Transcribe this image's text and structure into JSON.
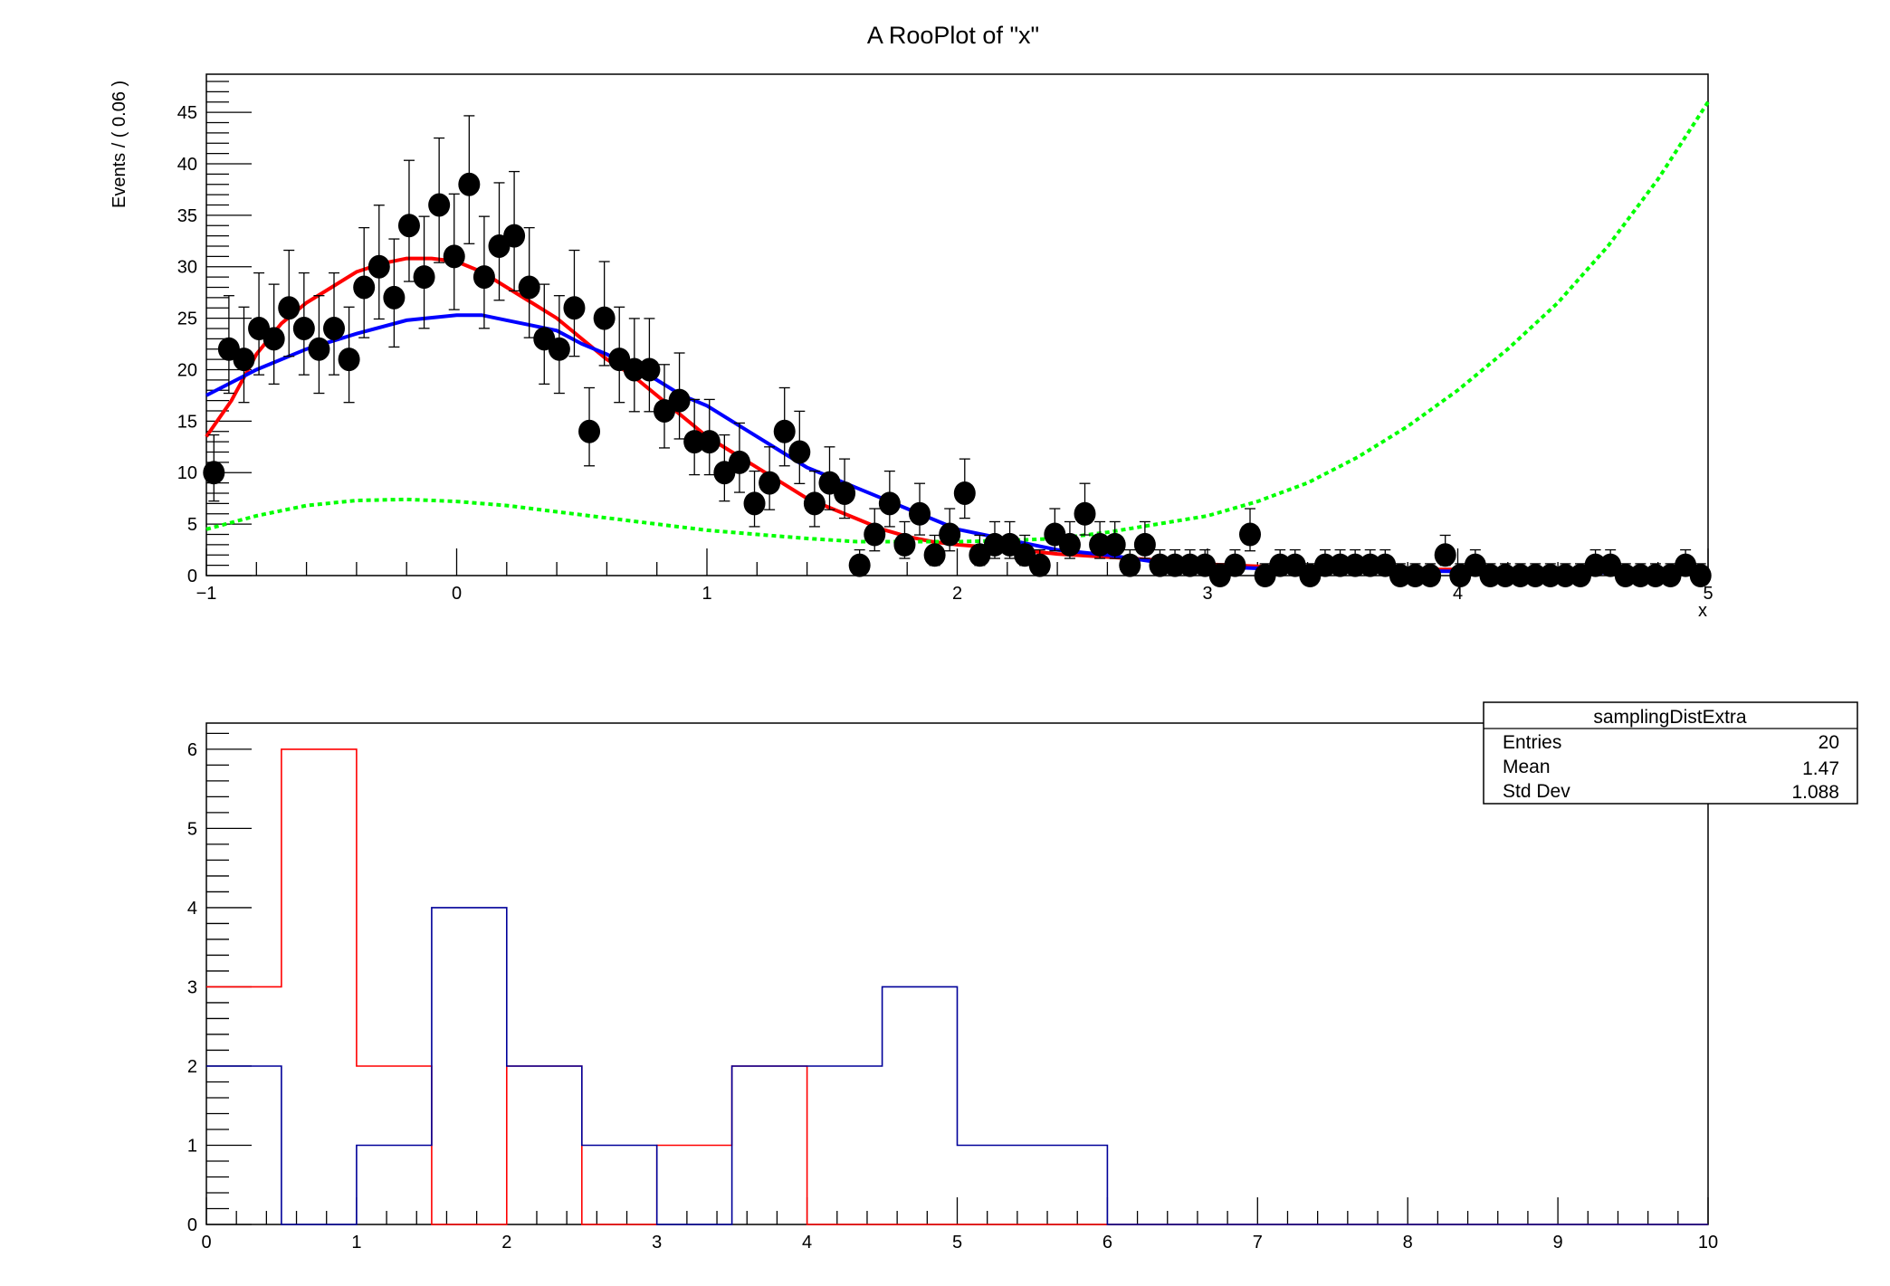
{
  "chart_data": [
    {
      "type": "scatter",
      "title": "A RooPlot of \"x\"",
      "xlabel": "x",
      "ylabel": "Events / ( 0.06 )",
      "xlim": [
        -1,
        5
      ],
      "ylim": [
        0,
        48.7
      ],
      "x_ticks": [
        -1,
        0,
        1,
        2,
        3,
        4,
        5
      ],
      "x_tick_labels": [
        "−1",
        "0",
        "1",
        "2",
        "3",
        "4",
        "5"
      ],
      "y_ticks": [
        0,
        5,
        10,
        15,
        20,
        25,
        30,
        35,
        40,
        45
      ],
      "y_tick_labels": [
        "0",
        "5",
        "10",
        "15",
        "20",
        "25",
        "30",
        "35",
        "40",
        "45"
      ],
      "grid": false,
      "bin_width": 0.06,
      "data_points": [
        10,
        22,
        21,
        24,
        23,
        26,
        24,
        22,
        24,
        21,
        28,
        30,
        27,
        34,
        29,
        36,
        31,
        38,
        29,
        32,
        33,
        28,
        23,
        22,
        26,
        14,
        25,
        21,
        20,
        20,
        16,
        17,
        13,
        13,
        10,
        11,
        7,
        9,
        14,
        12,
        7,
        9,
        8,
        1,
        4,
        7,
        3,
        6,
        2,
        4,
        8,
        2,
        3,
        3,
        2,
        1,
        4,
        3,
        6,
        3,
        3,
        1,
        3,
        1,
        1,
        1,
        1,
        0,
        1,
        4,
        0,
        1,
        1,
        0,
        1,
        1,
        1,
        1,
        1,
        0,
        0,
        0,
        2,
        0,
        1,
        0,
        0,
        0,
        0,
        0,
        0,
        0,
        1,
        1,
        0,
        0,
        0,
        0,
        1,
        0
      ],
      "curves": [
        {
          "color": "#ff0000",
          "style": "solid",
          "x": [
            -1,
            -0.9,
            -0.8,
            -0.7,
            -0.6,
            -0.5,
            -0.4,
            -0.3,
            -0.2,
            -0.1,
            0,
            0.1,
            0.2,
            0.3,
            0.4,
            0.5,
            0.6,
            0.7,
            0.8,
            0.9,
            1.0,
            1.1,
            1.2,
            1.3,
            1.4,
            1.5,
            1.6,
            1.7,
            1.8,
            1.9,
            2.0,
            2.2,
            2.4,
            2.6,
            2.8,
            3.0,
            3.2,
            3.6,
            3.8,
            4.0,
            4.5,
            4.8,
            5.0
          ],
          "y": [
            13.5,
            17,
            21.5,
            24.5,
            26.5,
            28,
            29.5,
            30.3,
            30.8,
            30.8,
            30.5,
            29.5,
            28,
            26.5,
            25,
            23,
            21,
            19.5,
            17.5,
            15.5,
            13.5,
            12,
            10.5,
            9,
            7.5,
            6.5,
            5.5,
            4.5,
            3.8,
            3.3,
            3,
            2.6,
            2.1,
            1.8,
            1.5,
            1.1,
            0.9,
            0.8,
            0.6,
            0.6,
            0.5,
            0.3,
            0.3
          ]
        },
        {
          "color": "#0000ff",
          "style": "solid",
          "x": [
            -1,
            -0.8,
            -0.6,
            -0.4,
            -0.2,
            0,
            0.1,
            0.2,
            0.3,
            0.4,
            0.5,
            0.6,
            0.7,
            0.8,
            0.9,
            1.0,
            1.1,
            1.2,
            1.3,
            1.4,
            1.5,
            1.6,
            1.7,
            1.8,
            1.9,
            2.0,
            2.2,
            2.4,
            2.6,
            2.8,
            3.0,
            3.2,
            3.6,
            4.0,
            4.5,
            5.0
          ],
          "y": [
            17.5,
            20,
            22,
            23.5,
            24.8,
            25.3,
            25.3,
            24.8,
            24.3,
            23.8,
            22.5,
            21.5,
            20.3,
            19,
            17.5,
            16.5,
            15,
            13.5,
            12,
            10.5,
            9.5,
            8.5,
            7.5,
            6.5,
            5.5,
            4.5,
            3.5,
            2.5,
            2,
            1.3,
            0.9,
            0.7,
            0.5,
            0.4,
            0.3,
            0.2
          ]
        },
        {
          "color": "#00ff00",
          "style": "dotted",
          "x": [
            -1,
            -0.8,
            -0.6,
            -0.4,
            -0.2,
            0,
            0.2,
            0.4,
            0.6,
            0.8,
            1.0,
            1.2,
            1.4,
            1.6,
            1.8,
            2.0,
            2.2,
            2.4,
            2.6,
            2.8,
            3.0,
            3.2,
            3.4,
            3.6,
            3.8,
            4.0,
            4.2,
            4.4,
            4.6,
            4.8,
            5.0
          ],
          "y": [
            4.5,
            5.8,
            6.8,
            7.3,
            7.4,
            7.2,
            6.8,
            6.2,
            5.6,
            5,
            4.4,
            4,
            3.6,
            3.3,
            3.3,
            3.3,
            3.4,
            3.6,
            4.2,
            5,
            5.8,
            7.2,
            9,
            11.5,
            14.5,
            18,
            22,
            26.5,
            32,
            38.5,
            46
          ]
        }
      ]
    },
    {
      "type": "bar",
      "title": "",
      "xlabel": "",
      "ylabel": "",
      "xlim": [
        0,
        10
      ],
      "ylim": [
        0,
        6.33
      ],
      "x_ticks": [
        0,
        1,
        2,
        3,
        4,
        5,
        6,
        7,
        8,
        9,
        10
      ],
      "x_tick_labels": [
        "0",
        "1",
        "2",
        "3",
        "4",
        "5",
        "6",
        "7",
        "8",
        "9",
        "10"
      ],
      "y_ticks": [
        0,
        1,
        2,
        3,
        4,
        5,
        6
      ],
      "y_tick_labels": [
        "0",
        "1",
        "2",
        "3",
        "4",
        "5",
        "6"
      ],
      "grid": false,
      "bin_edges": [
        0,
        0.5,
        1,
        1.5,
        2,
        2.5,
        3,
        3.5,
        4,
        4.5,
        5,
        5.5,
        6,
        6.5,
        7,
        7.5,
        8,
        8.5,
        9,
        9.5,
        10
      ],
      "series": [
        {
          "color": "#ff0000",
          "values": [
            3,
            6,
            2,
            0,
            2,
            0,
            1,
            2,
            0,
            0,
            0,
            0,
            0,
            0,
            0,
            0,
            0,
            0,
            0,
            0
          ]
        },
        {
          "color": "#000099",
          "values": [
            2,
            0,
            1,
            4,
            2,
            1,
            0,
            2,
            2,
            3,
            1,
            1,
            0,
            0,
            0,
            0,
            0,
            0,
            0,
            0
          ]
        }
      ],
      "stats_box": {
        "name": "samplingDistExtra",
        "rows": [
          {
            "label": "Entries",
            "value": "20"
          },
          {
            "label": "Mean",
            "value": "1.47"
          },
          {
            "label": "Std Dev",
            "value": "1.088"
          }
        ]
      }
    }
  ]
}
